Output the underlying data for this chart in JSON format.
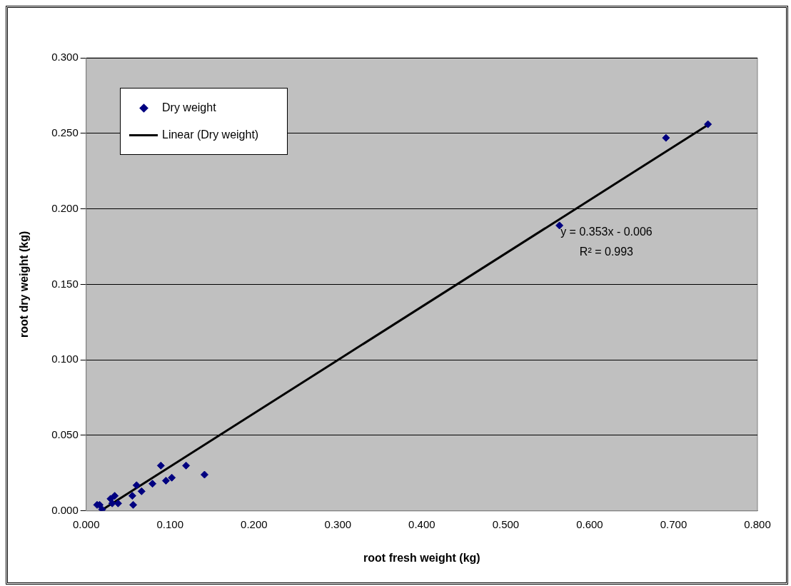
{
  "chart_data": {
    "type": "scatter",
    "xlabel": "root fresh weight (kg)",
    "ylabel": "root dry weight (kg)",
    "series": [
      {
        "name": "Dry weight",
        "color": "#000080",
        "marker": "diamond",
        "x": [
          0.013,
          0.016,
          0.019,
          0.029,
          0.031,
          0.034,
          0.038,
          0.055,
          0.056,
          0.06,
          0.066,
          0.079,
          0.089,
          0.095,
          0.102,
          0.119,
          0.141,
          0.564,
          0.691,
          0.741
        ],
        "values": [
          0.004,
          0.004,
          0.001,
          0.008,
          0.005,
          0.01,
          0.005,
          0.01,
          0.004,
          0.017,
          0.013,
          0.018,
          0.03,
          0.02,
          0.022,
          0.03,
          0.024,
          0.189,
          0.247,
          0.256
        ]
      },
      {
        "name": "Linear (Dry weight)",
        "type": "line",
        "color": "#000000",
        "marker": "none",
        "x": [
          0.017,
          0.741
        ],
        "values": [
          0.0,
          0.2556
        ]
      }
    ],
    "xlim": [
      0,
      0.8
    ],
    "xticks": [
      {
        "value": 0,
        "label": "0.000"
      },
      {
        "value": 0.1,
        "label": "0.100"
      },
      {
        "value": 0.2,
        "label": "0.200"
      },
      {
        "value": 0.3,
        "label": "0.300"
      },
      {
        "value": 0.4,
        "label": "0.400"
      },
      {
        "value": 0.5,
        "label": "0.500"
      },
      {
        "value": 0.6,
        "label": "0.600"
      },
      {
        "value": 0.7,
        "label": "0.700"
      },
      {
        "value": 0.8,
        "label": "0.800"
      }
    ],
    "ylim": [
      0,
      0.3
    ],
    "yticks": [
      {
        "value": 0,
        "label": "0.000"
      },
      {
        "value": 0.05,
        "label": "0.050"
      },
      {
        "value": 0.1,
        "label": "0.100"
      },
      {
        "value": 0.15,
        "label": "0.150"
      },
      {
        "value": 0.2,
        "label": "0.200"
      },
      {
        "value": 0.25,
        "label": "0.250"
      },
      {
        "value": 0.3,
        "label": "0.300"
      }
    ],
    "grid": "y",
    "legend": "top left",
    "annotations": [
      "y = 0.353x - 0.006",
      "R² = 0.993"
    ]
  }
}
